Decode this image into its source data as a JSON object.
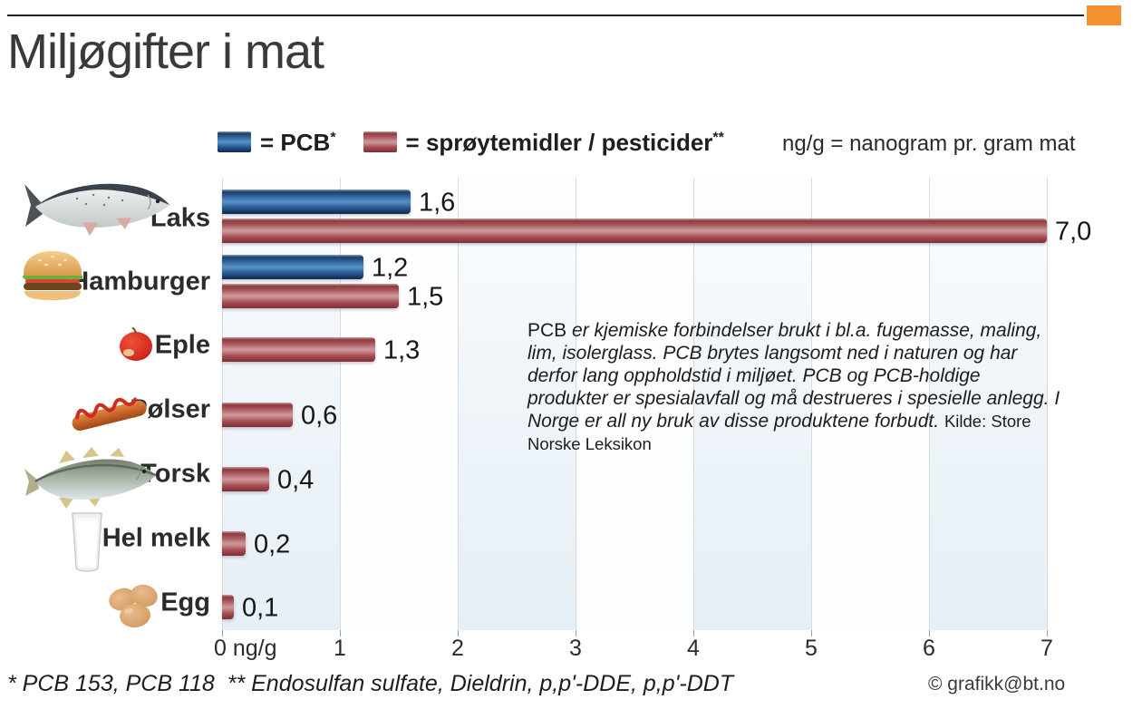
{
  "header": {
    "title": "Miljøgifter i mat"
  },
  "colors": {
    "accent_orange": "#f39030",
    "pcb_blue": "#2d5f96",
    "pesticide_red": "#a85055"
  },
  "legend": {
    "pcb_label": "= PCB",
    "pcb_sup": "*",
    "pesticide_label": "= sprøytemidler / pesticider",
    "pesticide_sup": "**",
    "unit_note": "ng/g = nanogram pr. gram mat"
  },
  "chart_data": {
    "type": "bar",
    "orientation": "horizontal",
    "unit": "ng/g",
    "xlim": [
      0,
      7
    ],
    "x_ticks": [
      "0 ng/g",
      "1",
      "2",
      "3",
      "4",
      "5",
      "6",
      "7"
    ],
    "grid": true,
    "series": [
      {
        "key": "pcb",
        "name": "PCB"
      },
      {
        "key": "pesticider",
        "name": "sprøytemidler / pesticider"
      }
    ],
    "rows": [
      {
        "category": "Laks",
        "icon": "salmon",
        "pcb": 1.6,
        "pcb_display": "1,6",
        "pesticider": 7.0,
        "pesticider_display": "7,0"
      },
      {
        "category": "Hamburger",
        "icon": "hamburger",
        "pcb": 1.2,
        "pcb_display": "1,2",
        "pesticider": 1.5,
        "pesticider_display": "1,5"
      },
      {
        "category": "Eple",
        "icon": "apple",
        "pcb": null,
        "pcb_display": null,
        "pesticider": 1.3,
        "pesticider_display": "1,3"
      },
      {
        "category": "Pølser",
        "icon": "sausage",
        "pcb": null,
        "pcb_display": null,
        "pesticider": 0.6,
        "pesticider_display": "0,6"
      },
      {
        "category": "Torsk",
        "icon": "cod",
        "pcb": null,
        "pcb_display": null,
        "pesticider": 0.4,
        "pesticider_display": "0,4"
      },
      {
        "category": "Hel melk",
        "icon": "milk-glass",
        "pcb": null,
        "pcb_display": null,
        "pesticider": 0.2,
        "pesticider_display": "0,2"
      },
      {
        "category": "Egg",
        "icon": "eggs",
        "pcb": null,
        "pcb_display": null,
        "pesticider": 0.1,
        "pesticider_display": "0,1"
      }
    ]
  },
  "info_box": {
    "lead": "PCB",
    "body": "er kjemiske forbindelser brukt i bl.a. fugemasse, maling, lim, isolerglass. PCB brytes langsomt ned i naturen og har derfor lang oppholdstid i miljøet. PCB og PCB-holdige produkter er spesialavfall og må destrueres i spesielle anlegg. I Norge er all ny bruk av disse produktene forbudt.",
    "source": "Kilde: Store Norske  Leksikon"
  },
  "footer": {
    "footnote": "* PCB 153, PCB 118  ** Endosulfan sulfate, Dieldrin, p,p'-DDE, p,p'-DDT",
    "credit": "© grafikk@bt.no"
  }
}
